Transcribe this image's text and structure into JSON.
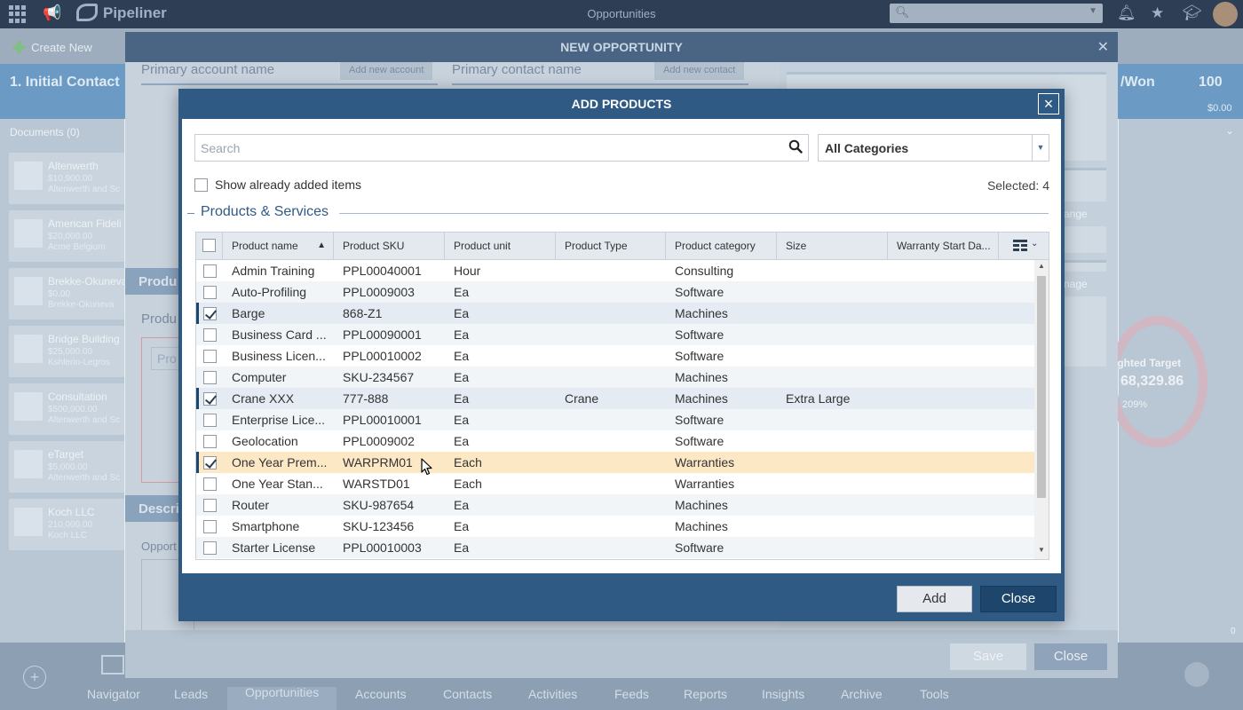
{
  "app": {
    "logo": "Pipeliner",
    "page_title": "Opportunities",
    "toolbar": {
      "create_new": "Create New"
    },
    "stage": {
      "left": "1. Initial Contact",
      "right": "/Won",
      "right_num": "100",
      "right_amt": "$0.00"
    },
    "documents": "Documents (0)",
    "cards": [
      {
        "name": "Altenwerth",
        "value": "$10,900.00",
        "owner": "Altenwerth and Sc"
      },
      {
        "name": "American Fideli",
        "value": "$20,000.00",
        "owner": "Acme Belgium"
      },
      {
        "name": "Brekke-Okuneva",
        "value": "$0.00",
        "owner": "Brekke-Okuneva"
      },
      {
        "name": "Bridge Building",
        "value": "$25,000.00",
        "owner": "Kshlerin-Legros"
      },
      {
        "name": "Consultation",
        "value": "$500,000.00",
        "owner": "Altenwerth and Sc"
      },
      {
        "name": "eTarget",
        "value": "$5,000.00",
        "owner": "Altenwerth and Sc"
      },
      {
        "name": "Koch LLC",
        "value": "210,000.00",
        "owner": "Koch LLC"
      }
    ],
    "weighted": {
      "title": "ighted Target",
      "value": "68,329.86",
      "pct": "209%"
    },
    "right_zero": "0",
    "nav": [
      "Navigator",
      "Leads",
      "Opportunities",
      "Accounts",
      "Contacts",
      "Activities",
      "Feeds",
      "Reports",
      "Insights",
      "Archive",
      "Tools"
    ],
    "nav_active": "Opportunities"
  },
  "new_opportunity": {
    "title": "NEW OPPORTUNITY",
    "primary_account_label": "Primary account name",
    "add_account": "Add new account",
    "primary_contact_label": "Primary contact name",
    "add_contact": "Add new contact",
    "products_section": "Produ",
    "products_label": "Produ",
    "products_input": "Pro",
    "description_section": "Descri",
    "opportunity_label": "Opport",
    "side_btn_1": "ange",
    "side_btn_2": "nage",
    "save": "Save",
    "close": "Close"
  },
  "dialog": {
    "title": "ADD PRODUCTS",
    "search_placeholder": "Search",
    "category": "All Categories",
    "show_added_label": "Show already added items",
    "selected_label": "Selected: 4",
    "group_title": "Products & Services",
    "columns": [
      "Product name",
      "Product SKU",
      "Product unit",
      "Product Type",
      "Product category",
      "Size",
      "Warranty Start Da..."
    ],
    "sort_indicator": "▲",
    "rows": [
      {
        "name": "Admin Training",
        "sku": "PPL00040001",
        "unit": "Hour",
        "type": "",
        "category": "Consulting",
        "size": "",
        "warranty": "",
        "checked": false
      },
      {
        "name": "Auto-Profiling",
        "sku": "PPL0009003",
        "unit": "Ea",
        "type": "",
        "category": "Software",
        "size": "",
        "warranty": "",
        "checked": false
      },
      {
        "name": "Barge",
        "sku": "868-Z1",
        "unit": "Ea",
        "type": "",
        "category": "Machines",
        "size": "",
        "warranty": "",
        "checked": true
      },
      {
        "name": "Business Card ...",
        "sku": "PPL00090001",
        "unit": "Ea",
        "type": "",
        "category": "Software",
        "size": "",
        "warranty": "",
        "checked": false
      },
      {
        "name": "Business Licen...",
        "sku": "PPL00010002",
        "unit": "Ea",
        "type": "",
        "category": "Software",
        "size": "",
        "warranty": "",
        "checked": false
      },
      {
        "name": "Computer",
        "sku": "SKU-234567",
        "unit": "Ea",
        "type": "",
        "category": "Machines",
        "size": "",
        "warranty": "",
        "checked": false
      },
      {
        "name": "Crane XXX",
        "sku": "777-888",
        "unit": "Ea",
        "type": "Crane",
        "category": "Machines",
        "size": "Extra Large",
        "warranty": "",
        "checked": true
      },
      {
        "name": "Enterprise Lice...",
        "sku": "PPL00010001",
        "unit": "Ea",
        "type": "",
        "category": "Software",
        "size": "",
        "warranty": "",
        "checked": false
      },
      {
        "name": "Geolocation",
        "sku": "PPL0009002",
        "unit": "Ea",
        "type": "",
        "category": "Software",
        "size": "",
        "warranty": "",
        "checked": false
      },
      {
        "name": "One Year Prem...",
        "sku": "WARPRM01",
        "unit": "Each",
        "type": "",
        "category": "Warranties",
        "size": "",
        "warranty": "",
        "checked": true
      },
      {
        "name": "One Year Stan...",
        "sku": "WARSTD01",
        "unit": "Each",
        "type": "",
        "category": "Warranties",
        "size": "",
        "warranty": "",
        "checked": false
      },
      {
        "name": "Router",
        "sku": "SKU-987654",
        "unit": "Ea",
        "type": "",
        "category": "Machines",
        "size": "",
        "warranty": "",
        "checked": false
      },
      {
        "name": "Smartphone",
        "sku": "SKU-123456",
        "unit": "Ea",
        "type": "",
        "category": "Machines",
        "size": "",
        "warranty": "",
        "checked": false
      },
      {
        "name": "Starter License",
        "sku": "PPL00010003",
        "unit": "Ea",
        "type": "",
        "category": "Software",
        "size": "",
        "warranty": "",
        "checked": false
      }
    ],
    "hovered_row": 9,
    "add": "Add",
    "close": "Close",
    "close_x": "×"
  },
  "colors": {
    "dialog_blue": "#2f5a84",
    "selected_row": "#e4ebf2",
    "hover_row": "#fde8c6"
  }
}
